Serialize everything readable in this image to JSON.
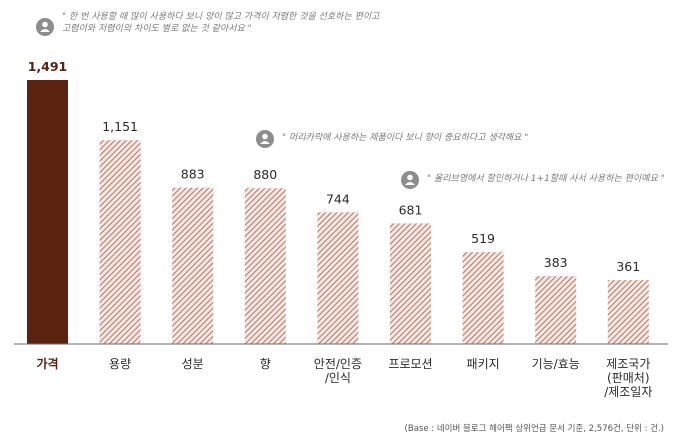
{
  "chart_data": {
    "type": "bar",
    "categories": [
      [
        "가격"
      ],
      [
        "용량"
      ],
      [
        "성분"
      ],
      [
        "향"
      ],
      [
        "안전/인증",
        "/인식"
      ],
      [
        "프로모션"
      ],
      [
        "패키지"
      ],
      [
        "기능/효능"
      ],
      [
        "제조국가",
        "(판매처)",
        "/제조일자"
      ]
    ],
    "values": [
      1491,
      1151,
      883,
      880,
      744,
      681,
      519,
      383,
      361
    ],
    "value_labels": [
      "1,491",
      "1,151",
      "883",
      "880",
      "744",
      "681",
      "519",
      "383",
      "361"
    ],
    "highlight_index": 0,
    "ylim": [
      0,
      1491
    ],
    "grid": false,
    "colors": {
      "highlight": "#5c2210",
      "hatch_line": "#b07a6c",
      "hatch_bg": "#f3e6e1",
      "baseline": "#6b6b6b"
    },
    "annotations": [
      {
        "icon": "person-pin-icon",
        "lines": [
          "\" 한 번 사용할 때 많이 사용하다 보니 양이 많고 가격이 저렴한 것을 선호하는 편이고",
          "고렴이와 저렴이의 차이도 별로 없는 것 같아서요 \""
        ]
      },
      {
        "icon": "person-pin-icon",
        "lines": [
          "\" 머리카락에 사용하는 제품이다 보니 향이 중요하다고 생각해요 \""
        ]
      },
      {
        "icon": "person-pin-icon",
        "lines": [
          "\" 올리브영에서 할인하거나 1+1할때 사서 사용하는 편이예요 \""
        ]
      }
    ],
    "footnote": "(Base : 네이버 블로그 헤어팩 상위언급 문서 기준, 2,576건, 단위 : 건.)"
  }
}
